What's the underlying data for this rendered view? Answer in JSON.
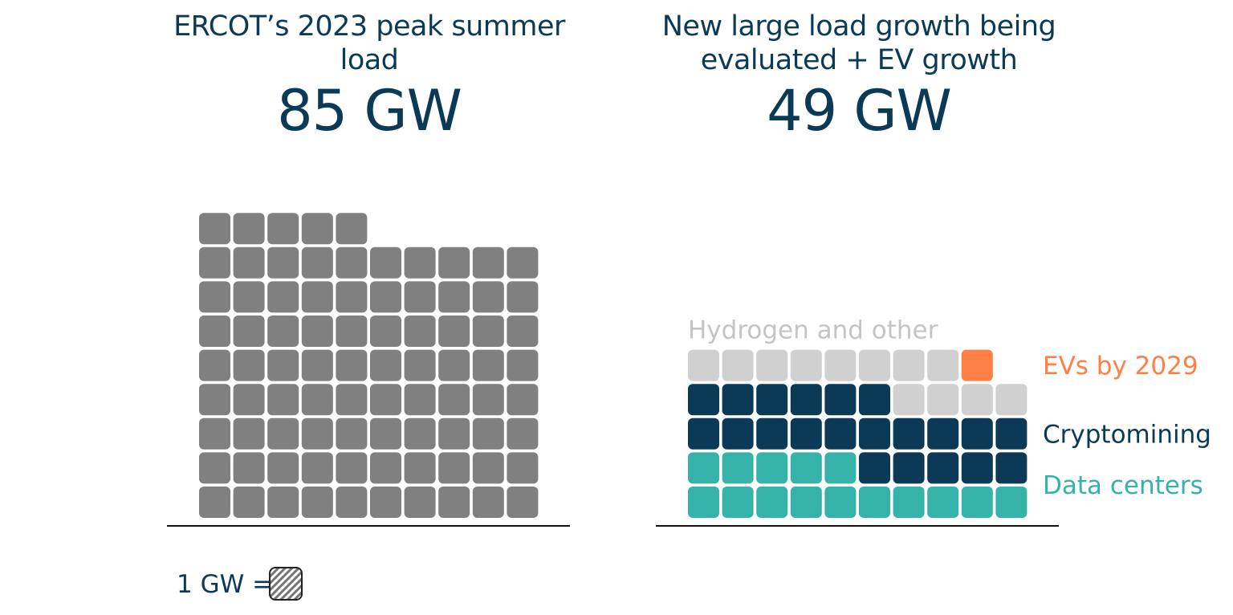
{
  "chart_data": [
    {
      "type": "waffle",
      "title_line1": "ERCOT’s 2023 peak summer",
      "title_line2": "load",
      "headline": "85 GW",
      "units_per_row": 10,
      "segments": [
        {
          "name": "",
          "value": 85,
          "color": "#808080"
        }
      ]
    },
    {
      "type": "waffle",
      "title_line1": "New large load growth being",
      "title_line2": "evaluated + EV growth",
      "headline": "49 GW",
      "units_per_row": 10,
      "segments": [
        {
          "name": "Data centers",
          "value": 15,
          "color": "#36b3a8"
        },
        {
          "name": "Cryptomining",
          "value": 21,
          "color": "#0b3a56"
        },
        {
          "name": "Hydrogen and other",
          "value": 12,
          "color": "#d0d0d0",
          "label_color": "#c4c4c4"
        },
        {
          "name": "EVs by 2029",
          "value": 1,
          "color": "#ff7f45"
        }
      ]
    }
  ],
  "unit_legend": {
    "text": "1 GW =",
    "swatch_colors": [
      "#ffffff",
      "#777777"
    ]
  }
}
